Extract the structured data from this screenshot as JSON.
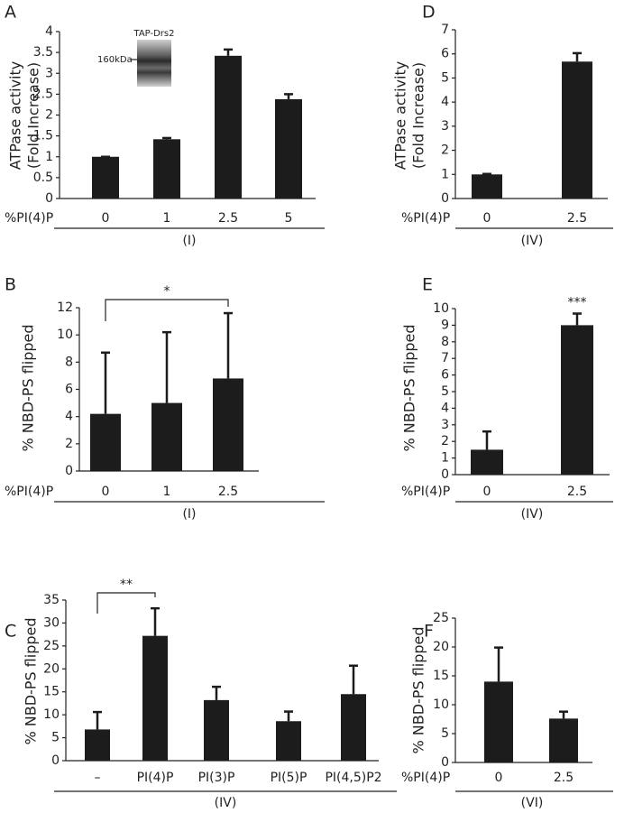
{
  "chart_data": [
    {
      "type": "bar",
      "panel": "A",
      "y_label": [
        "ATPase activity",
        "(Fold Increase)"
      ],
      "x_label": "%PI(4)P",
      "group_label": "(I)",
      "categories": [
        "0",
        "1",
        "2.5",
        "5"
      ],
      "values": [
        1.0,
        1.42,
        3.42,
        2.38
      ],
      "errors": [
        0.0,
        0.03,
        0.15,
        0.12
      ],
      "ylim": [
        0,
        4
      ],
      "yticks": [
        0,
        0.5,
        1,
        1.5,
        2,
        2.5,
        3,
        3.5,
        4
      ],
      "color": "#1c1c1c",
      "inset": {
        "title": "TAP-Drs2",
        "marker": "160kDa"
      }
    },
    {
      "type": "bar",
      "panel": "D",
      "y_label": [
        "ATPase activity",
        "(Fold Increase)"
      ],
      "x_label": "%PI(4)P",
      "group_label": "(IV)",
      "categories": [
        "0",
        "2.5"
      ],
      "values": [
        1.0,
        5.68
      ],
      "errors": [
        0.02,
        0.35
      ],
      "ylim": [
        0,
        7
      ],
      "yticks": [
        0,
        1,
        2,
        3,
        4,
        5,
        6,
        7
      ],
      "color": "#1c1c1c"
    },
    {
      "type": "bar",
      "panel": "B",
      "y_label": [
        "% NBD-PS flipped"
      ],
      "x_label": "%PI(4)P",
      "group_label": "(I)",
      "categories": [
        "0",
        "1",
        "2.5"
      ],
      "values": [
        4.2,
        5.0,
        6.8
      ],
      "errors": [
        4.5,
        5.2,
        4.8
      ],
      "ylim": [
        0,
        12
      ],
      "yticks": [
        0,
        2,
        4,
        6,
        8,
        10,
        12
      ],
      "color": "#1c1c1c",
      "annotations": [
        {
          "text": "*",
          "from": 0,
          "to": 2
        }
      ]
    },
    {
      "type": "bar",
      "panel": "E",
      "y_label": [
        "% NBD-PS flipped"
      ],
      "x_label": "%PI(4)P",
      "group_label": "(IV)",
      "categories": [
        "0",
        "2.5"
      ],
      "values": [
        1.5,
        9.0
      ],
      "errors": [
        1.1,
        0.7
      ],
      "ylim": [
        0,
        10
      ],
      "yticks": [
        0,
        1,
        2,
        3,
        4,
        5,
        6,
        7,
        8,
        9,
        10
      ],
      "color": "#1c1c1c",
      "annotations": [
        {
          "text": "***",
          "at": 1
        }
      ]
    },
    {
      "type": "bar",
      "panel": "C",
      "y_label": [
        "% NBD-PS flipped"
      ],
      "group_label": "(IV)",
      "categories": [
        "–",
        "PI(4)P",
        "PI(3)P",
        "PI(5)P",
        "PI(4,5)P2"
      ],
      "values": [
        6.8,
        27.2,
        13.2,
        8.6,
        14.5
      ],
      "errors": [
        3.8,
        6.0,
        2.9,
        2.1,
        6.2
      ],
      "ylim": [
        0,
        35
      ],
      "yticks": [
        0,
        5,
        10,
        15,
        20,
        25,
        30,
        35
      ],
      "color": "#1c1c1c",
      "annotations": [
        {
          "text": "**",
          "from": 0,
          "to": 1
        }
      ]
    },
    {
      "type": "bar",
      "panel": "F",
      "y_label": [
        "% NBD-PS flipped"
      ],
      "x_label": "%PI(4)P",
      "group_label": "(VI)",
      "categories": [
        "0",
        "2.5"
      ],
      "values": [
        14.0,
        7.6
      ],
      "errors": [
        5.9,
        1.2
      ],
      "ylim": [
        0,
        25
      ],
      "yticks": [
        0,
        5,
        10,
        15,
        20,
        25
      ],
      "color": "#1c1c1c"
    }
  ]
}
